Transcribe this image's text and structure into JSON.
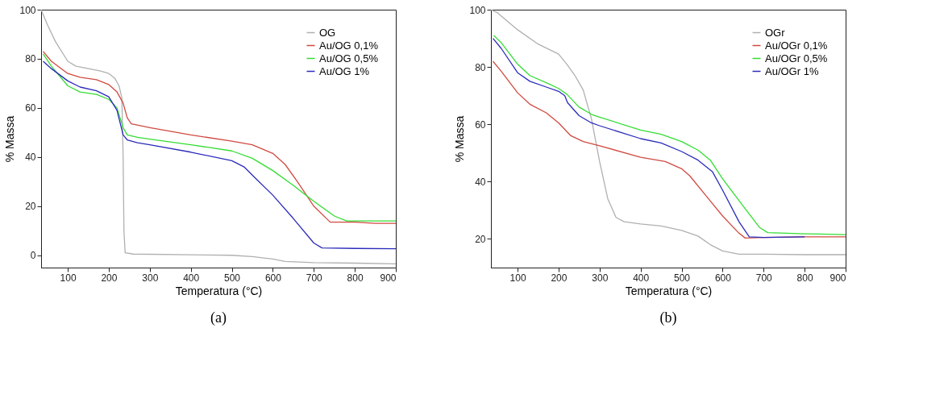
{
  "chart_data": [
    {
      "type": "line",
      "title": "(a)",
      "xlabel": "Temperatura (°C)",
      "ylabel": "% Massa",
      "xlim": [
        35,
        900
      ],
      "ylim": [
        -5,
        100
      ],
      "xticks": [
        100,
        200,
        300,
        400,
        500,
        600,
        700,
        800,
        900
      ],
      "yticks": [
        0,
        20,
        40,
        60,
        80,
        100
      ],
      "grid": false,
      "legend": "top right",
      "series": [
        {
          "name": "OG",
          "color": "#b0b0b0",
          "x": [
            35,
            50,
            70,
            100,
            120,
            150,
            180,
            200,
            215,
            225,
            232,
            235,
            237,
            240,
            260,
            400,
            500,
            550,
            600,
            630,
            700,
            800,
            900
          ],
          "values": [
            100,
            94,
            87,
            79,
            77,
            76,
            75,
            74,
            72,
            69,
            64,
            40,
            10,
            1,
            0.5,
            0.2,
            0,
            -0.5,
            -1.5,
            -2.5,
            -3,
            -3.2,
            -3.5
          ]
        },
        {
          "name": "Au/OG 0,1%",
          "color": "#d04a40",
          "x": [
            40,
            60,
            100,
            130,
            170,
            200,
            220,
            235,
            245,
            255,
            300,
            400,
            500,
            550,
            600,
            630,
            660,
            700,
            740,
            760,
            800,
            850,
            900
          ],
          "values": [
            83,
            79,
            74,
            72.5,
            71.5,
            69.5,
            66.5,
            62,
            56,
            53.5,
            52,
            49,
            46.5,
            45,
            41.5,
            37,
            30,
            20,
            13.5,
            13.5,
            13.5,
            13,
            13
          ]
        },
        {
          "name": "Au/OG 0,5%",
          "color": "#33dd33",
          "x": [
            40,
            60,
            100,
            130,
            170,
            200,
            220,
            235,
            245,
            270,
            300,
            400,
            500,
            550,
            600,
            650,
            700,
            750,
            780,
            850,
            900
          ],
          "values": [
            82,
            77,
            69,
            66.5,
            65.5,
            63.5,
            60,
            52,
            49,
            48,
            47.3,
            45,
            42.5,
            39.5,
            34.5,
            28.5,
            22,
            16,
            14,
            14,
            14
          ]
        },
        {
          "name": "Au/OG 1%",
          "color": "#2b2bbb",
          "x": [
            40,
            60,
            100,
            130,
            170,
            200,
            220,
            235,
            245,
            270,
            300,
            400,
            500,
            530,
            560,
            600,
            650,
            700,
            720,
            800,
            900
          ],
          "values": [
            79,
            76,
            71,
            68.5,
            67,
            64.5,
            59,
            49,
            47,
            45.8,
            45,
            42,
            38.5,
            36,
            31,
            24.5,
            15,
            5,
            3,
            2.8,
            2.7
          ]
        }
      ]
    },
    {
      "type": "line",
      "title": "(b)",
      "xlabel": "Temperatura (°C)",
      "ylabel": "% Massa",
      "xlim": [
        35,
        900
      ],
      "ylim": [
        10,
        100
      ],
      "xticks": [
        100,
        200,
        300,
        400,
        500,
        600,
        700,
        800,
        900
      ],
      "yticks": [
        20,
        40,
        60,
        80,
        100
      ],
      "grid": false,
      "legend": "top right",
      "series": [
        {
          "name": "OGr",
          "color": "#b0b0b0",
          "x": [
            35,
            50,
            100,
            150,
            200,
            220,
            240,
            260,
            280,
            300,
            320,
            340,
            360,
            400,
            450,
            500,
            540,
            570,
            600,
            640,
            700,
            800,
            900
          ],
          "values": [
            100,
            99,
            93,
            88,
            84.5,
            81,
            77,
            72,
            62,
            47,
            34,
            27.5,
            26,
            25.2,
            24.5,
            23,
            21,
            18,
            15.8,
            14.7,
            14.7,
            14.5,
            14.5
          ]
        },
        {
          "name": "Au/OGr 0,1%",
          "color": "#d04a40",
          "x": [
            40,
            60,
            100,
            130,
            170,
            200,
            230,
            260,
            300,
            400,
            460,
            500,
            520,
            560,
            600,
            640,
            655,
            700,
            800,
            900
          ],
          "values": [
            82,
            78.5,
            71,
            67,
            64,
            60.5,
            56,
            54,
            52.5,
            48.5,
            47,
            44.5,
            42,
            35,
            28,
            22,
            20.3,
            20.5,
            20.7,
            20.7
          ]
        },
        {
          "name": "Au/OGr 0,5%",
          "color": "#33dd33",
          "x": [
            42,
            60,
            100,
            130,
            170,
            200,
            220,
            250,
            280,
            300,
            400,
            450,
            500,
            540,
            570,
            600,
            650,
            690,
            710,
            800,
            900
          ],
          "values": [
            91,
            88.5,
            81,
            77,
            74.5,
            72.5,
            70.5,
            66,
            63.5,
            62.5,
            58,
            56.5,
            54,
            51,
            47.5,
            41,
            31.5,
            24,
            22.2,
            21.8,
            21.5
          ]
        },
        {
          "name": "Au/OGr 1%",
          "color": "#2b2bbb",
          "x": [
            40,
            60,
            100,
            130,
            170,
            200,
            215,
            222,
            250,
            280,
            300,
            400,
            450,
            500,
            540,
            575,
            600,
            640,
            665,
            700,
            800
          ],
          "values": [
            90,
            86.5,
            78,
            75,
            73,
            71.5,
            70,
            67.5,
            63,
            60.5,
            59.5,
            55,
            53.5,
            50.5,
            47.5,
            43.5,
            37,
            26,
            20.7,
            20.5,
            20.7
          ]
        }
      ]
    }
  ]
}
